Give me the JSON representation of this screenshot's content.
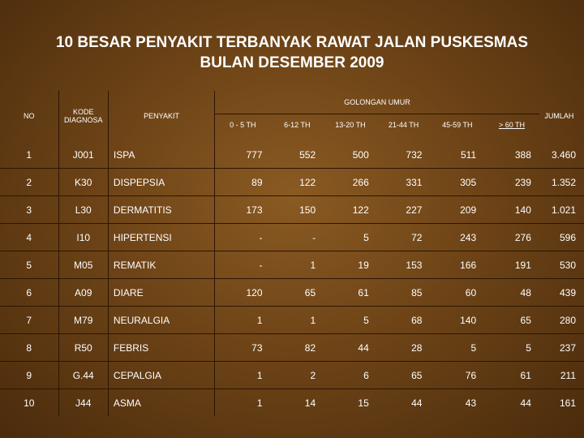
{
  "title": {
    "line1": "10 BESAR PENYAKIT TERBANYAK RAWAT JALAN PUSKESMAS",
    "line2": "BULAN DESEMBER 2009"
  },
  "header": {
    "no": "NO",
    "kode": "KODE DIAGNOSA",
    "penyakit": "PENYAKIT",
    "golongan": "GOLONGAN UMUR",
    "jumlah": "JUMLAH",
    "ages": [
      "0 - 5 TH",
      "6-12 TH",
      "13-20 TH",
      "21-44 TH",
      "45-59 TH",
      "> 60 TH"
    ]
  },
  "rows": [
    {
      "no": "1",
      "kode": "J001",
      "penyakit": "ISPA",
      "v": [
        "777",
        "552",
        "500",
        "732",
        "511",
        "388"
      ],
      "jumlah": "3.460"
    },
    {
      "no": "2",
      "kode": "K30",
      "penyakit": "DISPEPSIA",
      "v": [
        "89",
        "122",
        "266",
        "331",
        "305",
        "239"
      ],
      "jumlah": "1.352"
    },
    {
      "no": "3",
      "kode": "L30",
      "penyakit": "DERMATITIS",
      "v": [
        "173",
        "150",
        "122",
        "227",
        "209",
        "140"
      ],
      "jumlah": "1.021"
    },
    {
      "no": "4",
      "kode": "I10",
      "penyakit": "HIPERTENSI",
      "v": [
        "-",
        "-",
        "5",
        "72",
        "243",
        "276"
      ],
      "jumlah": "596"
    },
    {
      "no": "5",
      "kode": "M05",
      "penyakit": "REMATIK",
      "v": [
        "-",
        "1",
        "19",
        "153",
        "166",
        "191"
      ],
      "jumlah": "530"
    },
    {
      "no": "6",
      "kode": "A09",
      "penyakit": "DIARE",
      "v": [
        "120",
        "65",
        "61",
        "85",
        "60",
        "48"
      ],
      "jumlah": "439"
    },
    {
      "no": "7",
      "kode": "M79",
      "penyakit": "NEURALGIA",
      "v": [
        "1",
        "1",
        "5",
        "68",
        "140",
        "65"
      ],
      "jumlah": "280"
    },
    {
      "no": "8",
      "kode": "R50",
      "penyakit": "FEBRIS",
      "v": [
        "73",
        "82",
        "44",
        "28",
        "5",
        "5"
      ],
      "jumlah": "237"
    },
    {
      "no": "9",
      "kode": "G.44",
      "penyakit": "CEPALGIA",
      "v": [
        "1",
        "2",
        "6",
        "65",
        "76",
        "61"
      ],
      "jumlah": "211"
    },
    {
      "no": "10",
      "kode": "J44",
      "penyakit": "ASMA",
      "v": [
        "1",
        "14",
        "15",
        "44",
        "43",
        "44"
      ],
      "jumlah": "161"
    }
  ]
}
